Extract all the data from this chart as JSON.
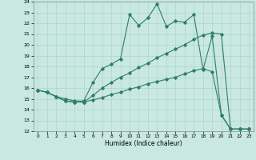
{
  "xlabel": "Humidex (Indice chaleur)",
  "xlim": [
    -0.5,
    23.5
  ],
  "ylim": [
    12,
    24
  ],
  "yticks": [
    12,
    13,
    14,
    15,
    16,
    17,
    18,
    19,
    20,
    21,
    22,
    23,
    24
  ],
  "xticks": [
    0,
    1,
    2,
    3,
    4,
    5,
    6,
    7,
    8,
    9,
    10,
    11,
    12,
    13,
    14,
    15,
    16,
    17,
    18,
    19,
    20,
    21,
    22,
    23
  ],
  "color": "#2e7d6e",
  "bg_color": "#c8e8e0",
  "grid_color": "#a8cfc8",
  "line1_x": [
    0,
    1,
    2,
    3,
    4,
    5,
    6,
    7,
    8,
    9,
    10,
    11,
    12,
    13,
    14,
    15,
    16,
    17,
    18,
    19,
    20,
    21,
    22,
    23
  ],
  "line1_y": [
    15.8,
    15.6,
    15.2,
    15.0,
    14.8,
    14.8,
    16.5,
    17.8,
    18.2,
    18.7,
    22.8,
    21.8,
    22.5,
    23.8,
    21.7,
    22.2,
    22.1,
    22.8,
    17.7,
    20.8,
    13.5,
    12.2,
    12.2,
    12.2
  ],
  "line2_x": [
    0,
    1,
    2,
    3,
    4,
    5,
    6,
    7,
    8,
    9,
    10,
    11,
    12,
    13,
    14,
    15,
    16,
    17,
    18,
    19,
    20,
    21,
    22,
    23
  ],
  "line2_y": [
    15.8,
    15.6,
    15.2,
    14.8,
    14.7,
    14.7,
    15.3,
    16.0,
    16.5,
    17.0,
    17.4,
    17.9,
    18.3,
    18.8,
    19.2,
    19.6,
    20.0,
    20.5,
    20.9,
    21.1,
    21.0,
    12.2,
    12.2,
    12.2
  ],
  "line3_x": [
    0,
    1,
    2,
    3,
    4,
    5,
    6,
    7,
    8,
    9,
    10,
    11,
    12,
    13,
    14,
    15,
    16,
    17,
    18,
    19,
    20,
    21,
    22,
    23
  ],
  "line3_y": [
    15.8,
    15.6,
    15.2,
    14.8,
    14.7,
    14.7,
    14.9,
    15.1,
    15.4,
    15.6,
    15.9,
    16.1,
    16.4,
    16.6,
    16.8,
    17.0,
    17.3,
    17.6,
    17.8,
    17.5,
    13.5,
    12.2,
    12.2,
    12.2
  ]
}
